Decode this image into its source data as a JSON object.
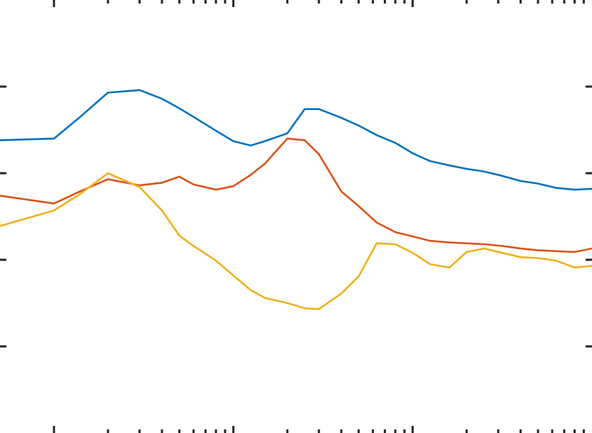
{
  "chart_data": {
    "type": "line",
    "title": "",
    "xlabel": "",
    "ylabel": "",
    "x_scale": "log",
    "xlim": [
      0.5,
      1000
    ],
    "ylim": [
      0,
      5
    ],
    "grid": false,
    "x_major_ticks": [
      1,
      10,
      100
    ],
    "x_minor_ticks": [
      2,
      3,
      4,
      5,
      6,
      7,
      8,
      9,
      20,
      30,
      40,
      50,
      60,
      70,
      80,
      90,
      200,
      300,
      400,
      500,
      600,
      700,
      800,
      900
    ],
    "y_ticks": [
      1,
      2,
      3,
      4
    ],
    "colors": [
      "#0072BD",
      "#D95319",
      "#EDB120"
    ],
    "series": [
      {
        "color": "#0072BD",
        "x": [
          0.5,
          1.0,
          1.4,
          2.0,
          3.0,
          4.0,
          5.0,
          6.0,
          8.0,
          10.0,
          12.5,
          15.0,
          20.0,
          25.0,
          30.0,
          40.0,
          50.0,
          63.0,
          80.0,
          100.0,
          125.0,
          160.0,
          200.0,
          250.0,
          315.0,
          400.0,
          500.0,
          630.0,
          800.0,
          1000.0
        ],
        "y": [
          3.38,
          3.4,
          3.65,
          3.93,
          3.96,
          3.86,
          3.75,
          3.65,
          3.49,
          3.37,
          3.32,
          3.37,
          3.46,
          3.74,
          3.74,
          3.64,
          3.55,
          3.44,
          3.35,
          3.23,
          3.14,
          3.09,
          3.05,
          3.02,
          2.97,
          2.91,
          2.88,
          2.83,
          2.81,
          2.82
        ]
      },
      {
        "color": "#D95319",
        "x": [
          0.5,
          1.0,
          1.4,
          2.0,
          3.0,
          4.0,
          5.0,
          6.0,
          8.0,
          10.0,
          12.5,
          15.0,
          20.0,
          25.0,
          30.0,
          40.0,
          50.0,
          63.0,
          80.0,
          100.0,
          125.0,
          160.0,
          200.0,
          250.0,
          315.0,
          400.0,
          500.0,
          630.0,
          800.0,
          1000.0
        ],
        "y": [
          2.74,
          2.65,
          2.79,
          2.93,
          2.86,
          2.89,
          2.96,
          2.87,
          2.81,
          2.85,
          2.98,
          3.11,
          3.4,
          3.38,
          3.22,
          2.79,
          2.62,
          2.43,
          2.32,
          2.27,
          2.22,
          2.2,
          2.19,
          2.18,
          2.16,
          2.13,
          2.11,
          2.1,
          2.09,
          2.13
        ]
      },
      {
        "color": "#EDB120",
        "x": [
          0.5,
          1.0,
          1.4,
          2.0,
          3.0,
          4.0,
          5.0,
          6.0,
          8.0,
          10.0,
          12.5,
          15.0,
          20.0,
          25.0,
          30.0,
          40.0,
          50.0,
          63.0,
          80.0,
          100.0,
          125.0,
          160.0,
          200.0,
          250.0,
          315.0,
          400.0,
          500.0,
          630.0,
          800.0,
          1000.0
        ],
        "y": [
          2.39,
          2.57,
          2.76,
          3.0,
          2.84,
          2.57,
          2.28,
          2.16,
          1.99,
          1.82,
          1.65,
          1.56,
          1.5,
          1.44,
          1.43,
          1.61,
          1.81,
          2.19,
          2.18,
          2.08,
          1.95,
          1.91,
          2.09,
          2.13,
          2.08,
          2.03,
          2.02,
          1.99,
          1.91,
          1.93
        ]
      }
    ]
  }
}
